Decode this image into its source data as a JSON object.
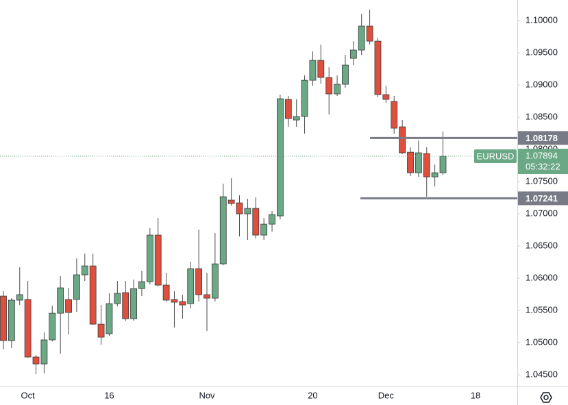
{
  "chart_data": {
    "type": "candlestick",
    "symbol": "EURUSD",
    "last_price": 1.07894,
    "countdown": "05:32:22",
    "up_color": "#6aa886",
    "down_color": "#de4f3e",
    "levels": [
      1.08178,
      1.07241
    ],
    "categories": [
      null,
      null,
      null,
      "Oct",
      null,
      null,
      null,
      null,
      null,
      null,
      null,
      null,
      null,
      "16",
      null,
      null,
      null,
      null,
      null,
      null,
      null,
      null,
      null,
      null,
      null,
      "Nov",
      null,
      null,
      null,
      null,
      null,
      null,
      null,
      null,
      null,
      null,
      null,
      null,
      "20",
      null,
      null,
      null,
      null,
      null,
      null,
      null,
      null,
      "Dec",
      null,
      null,
      null,
      null,
      null,
      null,
      null,
      null,
      null,
      null,
      "18"
    ],
    "open": [
      1.05723,
      1.05032,
      1.0566,
      1.0567,
      1.04777,
      1.0467,
      1.05043,
      1.05457,
      1.0567,
      1.0567,
      1.06053,
      1.06191,
      1.05287,
      1.05138,
      1.05606,
      1.05777,
      1.05372,
      1.0584,
      1.05947,
      1.0667,
      1.05894,
      1.0567,
      1.05638,
      1.05606,
      1.06149,
      1.05745,
      1.05691,
      1.06223,
      1.07213,
      1.0717,
      1.07,
      1.07085,
      1.0667,
      1.0684,
      1.06968,
      1.08777,
      1.08457,
      1.08511,
      1.09074,
      1.09383,
      1.09117,
      1.08862,
      1.09011,
      1.09415,
      1.09543,
      1.09915,
      1.09681,
      1.08851,
      1.08745,
      1.08351,
      1.07957,
      1.07638,
      1.07936,
      1.07574,
      1.07638,
      null,
      null,
      null,
      null
    ],
    "high": [
      1.05798,
      1.05691,
      1.0617,
      1.05957,
      1.04809,
      1.0516,
      1.05574,
      1.06032,
      1.05851,
      1.06309,
      1.06383,
      1.06383,
      1.05585,
      1.05766,
      1.05957,
      1.05957,
      1.05979,
      1.06117,
      1.06777,
      1.06936,
      1.06085,
      1.05798,
      1.05745,
      1.06255,
      1.06755,
      1.06085,
      1.06702,
      1.07468,
      1.07553,
      1.07287,
      1.07234,
      1.07255,
      1.06936,
      1.07043,
      1.08851,
      1.0883,
      1.08777,
      1.09149,
      1.09521,
      1.09628,
      1.09277,
      1.09149,
      1.09468,
      1.09681,
      1.10106,
      1.1017,
      1.09734,
      1.08989,
      1.0883,
      1.08457,
      1.08032,
      1.08138,
      1.08032,
      1.07766,
      1.08277,
      null,
      null,
      null,
      null
    ],
    "low": [
      1.04894,
      1.04915,
      1.05585,
      1.04766,
      1.04511,
      1.04521,
      1.05021,
      1.0483,
      1.05128,
      1.05479,
      1.05957,
      1.05277,
      1.04968,
      1.05106,
      1.05564,
      1.0534,
      1.0534,
      1.05723,
      1.05904,
      1.05872,
      1.05638,
      1.05234,
      1.05372,
      1.05532,
      1.05638,
      1.05181,
      1.05638,
      1.06202,
      1.07128,
      1.06649,
      1.06596,
      1.06617,
      1.06596,
      1.06723,
      1.06915,
      1.08351,
      1.08351,
      1.08245,
      1.08989,
      1.09021,
      1.08543,
      1.0883,
      1.08957,
      1.09309,
      1.09468,
      1.09628,
      1.08809,
      1.08723,
      1.08245,
      1.07926,
      1.07585,
      1.07574,
      1.07266,
      1.07426,
      1.07606,
      null,
      null,
      null,
      null
    ],
    "close": [
      1.05032,
      1.0566,
      1.05745,
      1.04777,
      1.0467,
      1.05043,
      1.05457,
      1.05851,
      1.05468,
      1.06053,
      1.06191,
      1.05287,
      1.05085,
      1.05606,
      1.05766,
      1.05372,
      1.0584,
      1.05947,
      1.0667,
      1.05894,
      1.0566,
      1.05628,
      1.05585,
      1.06149,
      1.05745,
      1.05691,
      1.06223,
      1.07266,
      1.0716,
      1.07,
      1.07085,
      1.0667,
      1.0684,
      1.06989,
      1.08787,
      1.08479,
      1.08511,
      1.09074,
      1.09383,
      1.09117,
      1.08862,
      1.09011,
      1.09309,
      1.09543,
      1.09915,
      1.09681,
      1.08851,
      1.08777,
      1.0833,
      1.07947,
      1.07638,
      1.07947,
      1.07574,
      1.07638,
      1.07894,
      null,
      null,
      null,
      null
    ],
    "ylim": [
      1.0433,
      1.1032
    ],
    "yticks": [
      {
        "value": 1.045,
        "label": "1.04500"
      },
      {
        "value": 1.05,
        "label": "1.05000"
      },
      {
        "value": 1.055,
        "label": "1.05500"
      },
      {
        "value": 1.06,
        "label": "1.06000"
      },
      {
        "value": 1.065,
        "label": "1.06500"
      },
      {
        "value": 1.07,
        "label": "1.07000"
      },
      {
        "value": 1.075,
        "label": "1.07500"
      },
      {
        "value": 1.08,
        "label": "1.08000"
      },
      {
        "value": 1.085,
        "label": "1.08500"
      },
      {
        "value": 1.09,
        "label": "1.09000"
      },
      {
        "value": 1.095,
        "label": "1.09500"
      },
      {
        "value": 1.1,
        "label": "1.10000"
      }
    ]
  }
}
